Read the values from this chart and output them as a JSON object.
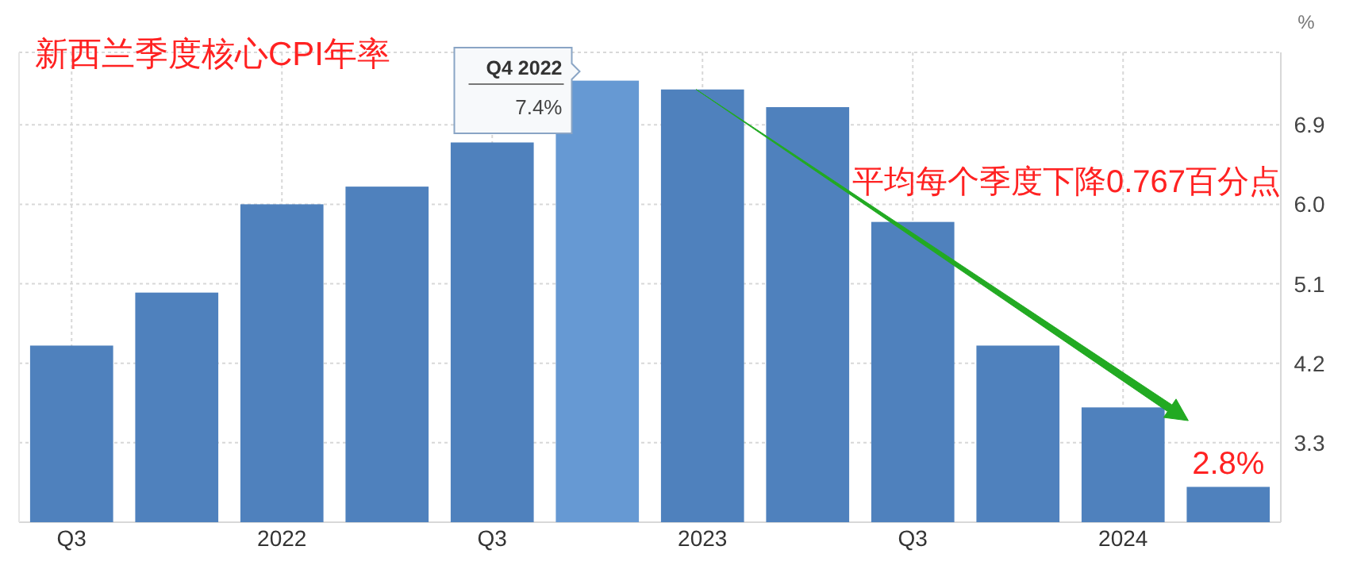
{
  "chart_data": {
    "type": "bar",
    "title": "新西兰季度核心CPI年率",
    "ylabel": "%",
    "categories": [
      "Q3",
      null,
      "2022",
      null,
      "Q3",
      null,
      "2023",
      null,
      "Q3",
      null,
      "2024",
      null
    ],
    "values": [
      4.4,
      5.0,
      6.0,
      6.2,
      6.7,
      7.4,
      7.3,
      7.1,
      5.8,
      4.4,
      3.7,
      2.8
    ],
    "colors": [
      "#4f81bd",
      "#4f81bd",
      "#4f81bd",
      "#4f81bd",
      "#4f81bd",
      "#6699d3",
      "#4f81bd",
      "#4f81bd",
      "#4f81bd",
      "#4f81bd",
      "#4f81bd",
      "#4f81bd"
    ],
    "ylim": [
      2.4,
      7.72
    ],
    "yticks": [
      3.3,
      4.2,
      5.1,
      {
        "value": 6.0,
        "label": "6.0"
      },
      6.9
    ],
    "grid": true,
    "annotations": [
      "Q4 2022\n7.4%",
      "平均每个季度下降0.767百分点",
      {
        "text": "2.8%",
        "y": 2.8
      }
    ]
  }
}
